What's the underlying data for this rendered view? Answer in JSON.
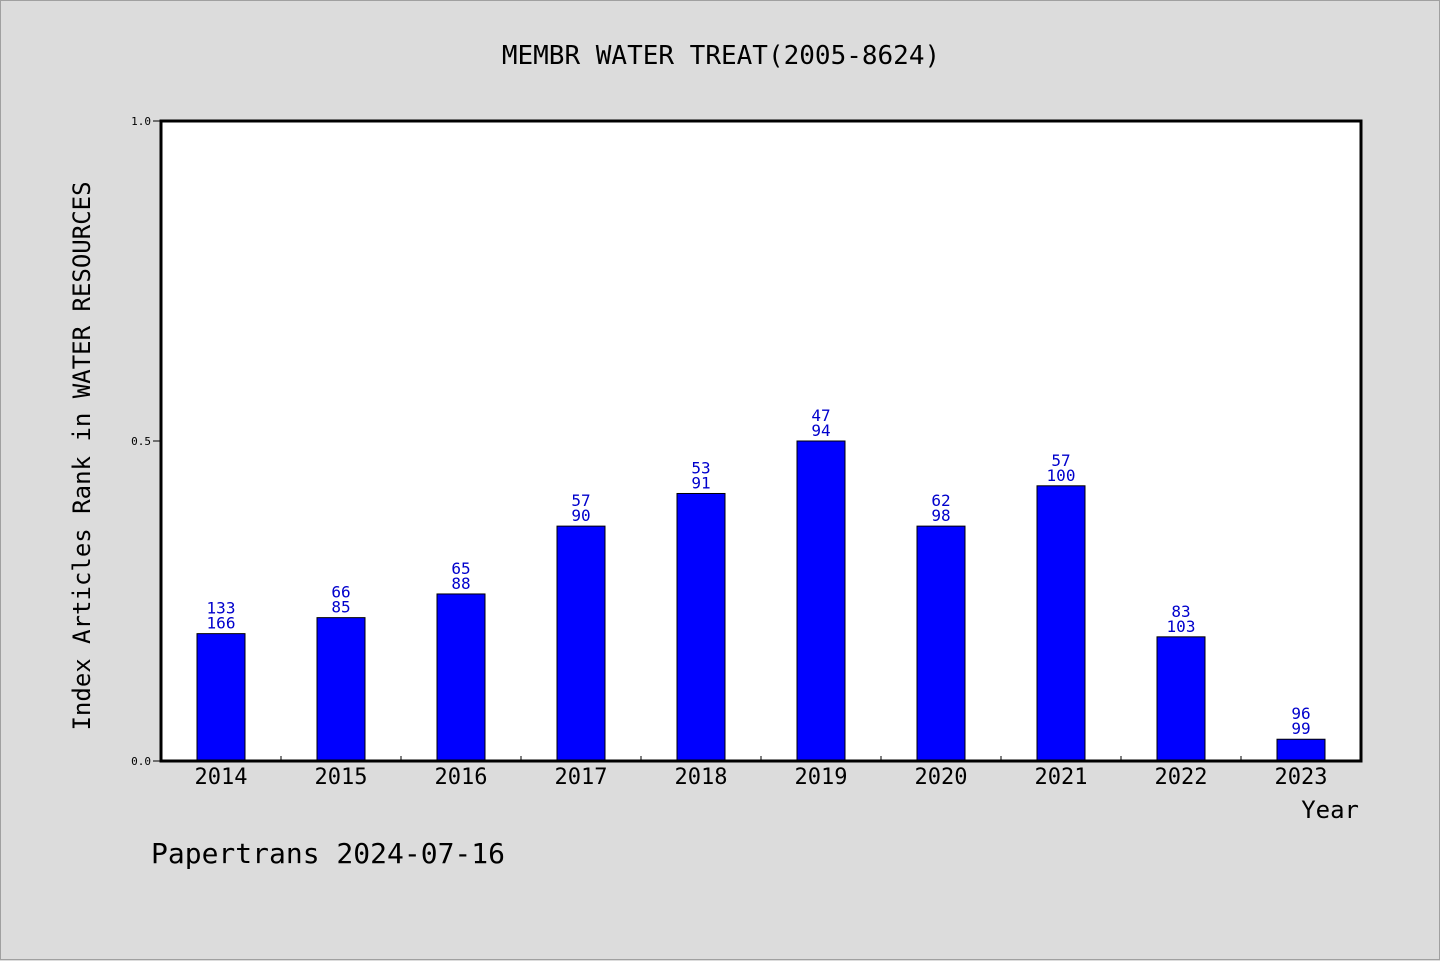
{
  "chart_data": {
    "type": "bar",
    "title": "MEMBR WATER TREAT(2005-8624)",
    "xlabel": "Year",
    "ylabel": "Index Articles Rank in WATER RESOURCES",
    "ylim": [
      0,
      1.0
    ],
    "yticks": [
      "0.0",
      "0.5",
      "1.0"
    ],
    "categories": [
      "2014",
      "2015",
      "2016",
      "2017",
      "2018",
      "2019",
      "2020",
      "2021",
      "2022",
      "2023"
    ],
    "values": [
      0.199,
      0.224,
      0.261,
      0.367,
      0.418,
      0.5,
      0.367,
      0.43,
      0.194,
      0.034
    ],
    "label_top": [
      "133",
      "66",
      "65",
      "57",
      "53",
      "47",
      "62",
      "57",
      "83",
      "96"
    ],
    "label_bottom": [
      "166",
      "85",
      "88",
      "90",
      "91",
      "94",
      "98",
      "100",
      "103",
      "99"
    ],
    "bar_color": "#0000ff",
    "label_color": "#0000cc",
    "grid": false
  },
  "footer": {
    "text": "Papertrans 2024-07-16"
  }
}
